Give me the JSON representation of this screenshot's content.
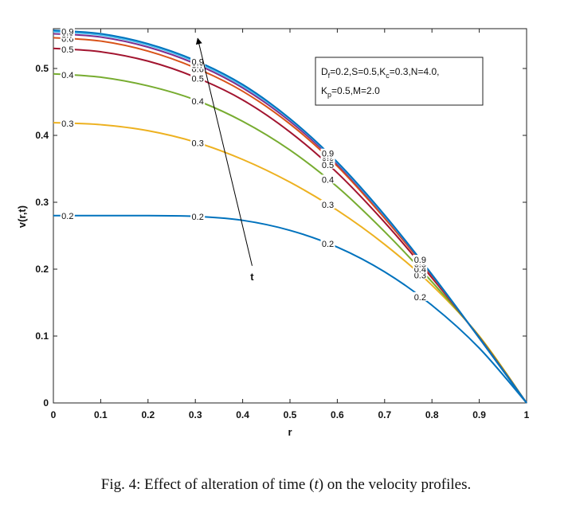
{
  "chart_data": {
    "type": "line",
    "xlabel": "r",
    "ylabel": "v(r,t)",
    "xlim": [
      0,
      1
    ],
    "ylim": [
      0,
      0.56
    ],
    "x_ticks": [
      "0",
      "0.1",
      "0.2",
      "0.3",
      "0.4",
      "0.5",
      "0.6",
      "0.7",
      "0.8",
      "0.9",
      "1"
    ],
    "y_ticks": [
      "0",
      "0.1",
      "0.2",
      "0.3",
      "0.4",
      "0.5"
    ],
    "grid": false,
    "x": [
      0,
      0.1,
      0.2,
      0.3,
      0.4,
      0.5,
      0.6,
      0.7,
      0.8,
      0.9,
      1.0
    ],
    "series": [
      {
        "name": "0.2",
        "color": "#0072BD",
        "values": [
          0.28,
          0.28,
          0.28,
          0.279,
          0.273,
          0.258,
          0.233,
          0.196,
          0.146,
          0.082,
          0.0
        ]
      },
      {
        "name": "0.3",
        "color": "#EDB120",
        "values": [
          0.419,
          0.416,
          0.407,
          0.39,
          0.364,
          0.33,
          0.288,
          0.237,
          0.176,
          0.1,
          0.0
        ]
      },
      {
        "name": "0.4",
        "color": "#77AC30",
        "values": [
          0.492,
          0.487,
          0.474,
          0.453,
          0.421,
          0.378,
          0.323,
          0.256,
          0.181,
          0.099,
          0.0
        ]
      },
      {
        "name": "0.5",
        "color": "#A2142F",
        "values": [
          0.53,
          0.525,
          0.511,
          0.487,
          0.453,
          0.405,
          0.344,
          0.27,
          0.187,
          0.098,
          0.0
        ]
      },
      {
        "name": "0.6",
        "color": "#D95319",
        "values": [
          0.546,
          0.541,
          0.526,
          0.501,
          0.466,
          0.417,
          0.354,
          0.276,
          0.19,
          0.097,
          0.0
        ]
      },
      {
        "name": "0.7",
        "color": "#7E2F8E",
        "values": [
          0.552,
          0.547,
          0.532,
          0.507,
          0.471,
          0.421,
          0.357,
          0.279,
          0.191,
          0.097,
          0.0
        ]
      },
      {
        "name": "0.8",
        "color": "#4DBEEE",
        "values": [
          0.555,
          0.55,
          0.535,
          0.51,
          0.474,
          0.424,
          0.359,
          0.28,
          0.192,
          0.097,
          0.0
        ]
      },
      {
        "name": "0.9",
        "color": "#0072BD",
        "values": [
          0.557,
          0.552,
          0.537,
          0.512,
          0.476,
          0.425,
          0.36,
          0.281,
          0.192,
          0.097,
          0.0
        ]
      }
    ],
    "legend": {
      "line1": {
        "p1": "D",
        "sub1": "f",
        "p2": "=0.2,S=0.5,K",
        "sub2": "c",
        "p3": "=0.3,N=4.0,"
      },
      "line2": {
        "p1": "K",
        "sub1": "p",
        "p2": "=0.5,M=2.0"
      },
      "placement": "top-right"
    },
    "annotation": {
      "text": "t",
      "arrow_from": [
        0.42,
        0.205
      ],
      "arrow_to": [
        0.305,
        0.545
      ]
    }
  },
  "caption": {
    "prefix": "Fig. 4: Effect of alteration of time (",
    "variable": "t",
    "suffix": ") on the velocity profiles."
  }
}
